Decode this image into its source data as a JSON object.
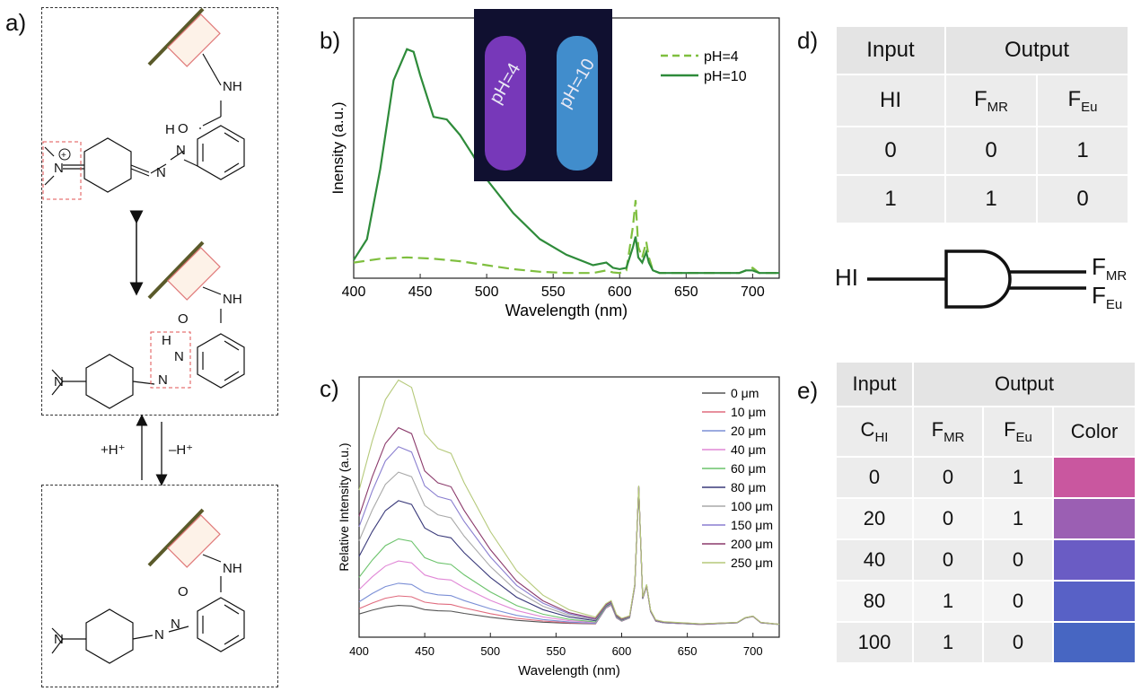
{
  "panels": {
    "a": "a)",
    "b": "b)",
    "c": "c)",
    "d": "d)",
    "e": "e)"
  },
  "scheme": {
    "nh": "NH",
    "o": "O",
    "h": "H",
    "n": "N",
    "equilibrium_up": "+H⁺",
    "equilibrium_down": "–H⁺"
  },
  "chart_data": [
    {
      "id": "b",
      "type": "line",
      "xlabel": "Wavelength (nm)",
      "ylabel": "Inensity (a.u.)",
      "xlim": [
        400,
        720
      ],
      "xticks": [
        400,
        450,
        500,
        550,
        600,
        650,
        700
      ],
      "legend_position": "top-right",
      "series": [
        {
          "name": "pH=4",
          "color": "#7fbf3f",
          "style": "dashed",
          "x": [
            400,
            420,
            440,
            460,
            480,
            500,
            520,
            540,
            560,
            580,
            590,
            595,
            600,
            605,
            610,
            612,
            614,
            617,
            620,
            622,
            625,
            630,
            640,
            660,
            690,
            695,
            700,
            705,
            720
          ],
          "y": [
            0.06,
            0.075,
            0.08,
            0.075,
            0.065,
            0.05,
            0.035,
            0.025,
            0.02,
            0.02,
            0.03,
            0.022,
            0.02,
            0.03,
            0.2,
            0.3,
            0.12,
            0.08,
            0.14,
            0.08,
            0.03,
            0.02,
            0.02,
            0.02,
            0.02,
            0.03,
            0.04,
            0.02,
            0.02
          ]
        },
        {
          "name": "pH=10",
          "color": "#2e8b3a",
          "style": "solid",
          "x": [
            400,
            410,
            420,
            430,
            440,
            445,
            450,
            460,
            470,
            480,
            490,
            500,
            520,
            540,
            560,
            580,
            590,
            595,
            600,
            605,
            610,
            612,
            614,
            617,
            620,
            622,
            625,
            630,
            640,
            660,
            690,
            695,
            700,
            705,
            720
          ],
          "y": [
            0.07,
            0.15,
            0.42,
            0.76,
            0.88,
            0.87,
            0.78,
            0.62,
            0.61,
            0.55,
            0.47,
            0.38,
            0.25,
            0.15,
            0.09,
            0.05,
            0.06,
            0.04,
            0.035,
            0.04,
            0.12,
            0.16,
            0.08,
            0.06,
            0.1,
            0.06,
            0.03,
            0.02,
            0.02,
            0.02,
            0.02,
            0.03,
            0.03,
            0.02,
            0.02
          ]
        }
      ],
      "inset": {
        "labels": [
          "pH=4",
          "pH=10"
        ],
        "colors": [
          "#8a3fd1",
          "#4aa3e8"
        ]
      }
    },
    {
      "id": "c",
      "type": "line",
      "xlabel": "Wavelength (nm)",
      "ylabel": "Relative Intensity (a.u.)",
      "xlim": [
        400,
        720
      ],
      "xticks": [
        400,
        450,
        500,
        550,
        600,
        650,
        700
      ],
      "legend_position": "top-right",
      "peaks": [
        0.06,
        0.09,
        0.13,
        0.2,
        0.27,
        0.39,
        0.48,
        0.56,
        0.62,
        0.77
      ],
      "series": [
        {
          "name": "0 μm",
          "color": "#555555"
        },
        {
          "name": "10 μm",
          "color": "#e06b7e"
        },
        {
          "name": "20 μm",
          "color": "#7b8fd6"
        },
        {
          "name": "40 μm",
          "color": "#e087d6"
        },
        {
          "name": "60 μm",
          "color": "#6cc36c"
        },
        {
          "name": "80 μm",
          "color": "#3a3a7a"
        },
        {
          "name": "100 μm",
          "color": "#a9a9a9"
        },
        {
          "name": "150 μm",
          "color": "#8a7fd0"
        },
        {
          "name": "200 μm",
          "color": "#8b3a6b"
        },
        {
          "name": "250 μm",
          "color": "#b5c97a"
        }
      ]
    }
  ],
  "table_d": {
    "headers": [
      "Input",
      "Output"
    ],
    "subheaders": [
      "HI",
      "F",
      "F"
    ],
    "sub_subscripts": [
      "",
      "MR",
      "Eu"
    ],
    "rows": [
      [
        "0",
        "0",
        "1"
      ],
      [
        "1",
        "1",
        "0"
      ]
    ]
  },
  "gate": {
    "input": "HI",
    "out1": "F",
    "out1_sub": "MR",
    "out2": "F",
    "out2_sub": "Eu"
  },
  "table_e": {
    "headers": [
      "Input",
      "Output"
    ],
    "subheaders": [
      "C",
      "F",
      "F",
      "Color"
    ],
    "sub_subscripts": [
      "HI",
      "MR",
      "Eu",
      ""
    ],
    "rows": [
      {
        "c": "0",
        "mr": "0",
        "eu": "1",
        "color": "#c9579f"
      },
      {
        "c": "20",
        "mr": "0",
        "eu": "1",
        "color": "#9b5fb3"
      },
      {
        "c": "40",
        "mr": "0",
        "eu": "0",
        "color": "#6a5cc4"
      },
      {
        "c": "80",
        "mr": "1",
        "eu": "0",
        "color": "#5861c6"
      },
      {
        "c": "100",
        "mr": "1",
        "eu": "0",
        "color": "#4766c2"
      }
    ]
  }
}
